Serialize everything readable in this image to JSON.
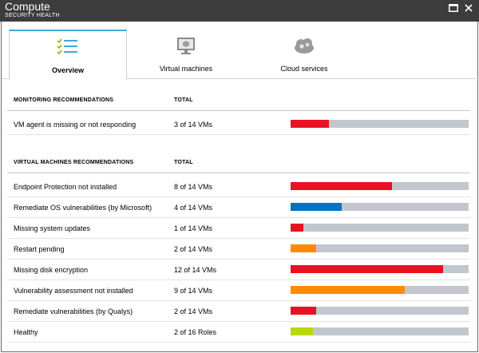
{
  "window": {
    "title": "Compute",
    "subtitle": "SECURITY HEALTH",
    "maximize_icon": "maximize-icon",
    "close_icon": "close-icon"
  },
  "tabs": [
    {
      "label": "Overview",
      "icon": "checklist-icon",
      "active": true
    },
    {
      "label": "Virtual machines",
      "icon": "monitor-icon",
      "active": false
    },
    {
      "label": "Cloud services",
      "icon": "cloud-gear-icon",
      "active": false
    }
  ],
  "monitoring": {
    "header_name": "MONITORING RECOMMENDATIONS",
    "header_total": "TOTAL",
    "rows": [
      {
        "name": "VM agent is missing or not responding",
        "total": "3 of 14 VMs",
        "fraction": 0.214,
        "color": "#e81123"
      }
    ]
  },
  "vm": {
    "header_name": "VIRTUAL MACHINES RECOMMENDATIONS",
    "header_total": "TOTAL",
    "rows": [
      {
        "name": "Endpoint Protection not installed",
        "total": "8 of 14 VMs",
        "fraction": 0.571,
        "color": "#e81123"
      },
      {
        "name": "Remediate OS vulnerabilities (by Microsoft)",
        "total": "4 of 14 VMs",
        "fraction": 0.286,
        "color": "#0072c6"
      },
      {
        "name": "Missing system updates",
        "total": "1 of 14 VMs",
        "fraction": 0.071,
        "color": "#e81123"
      },
      {
        "name": "Restart pending",
        "total": "2 of 14 VMs",
        "fraction": 0.143,
        "color": "#ff8c00"
      },
      {
        "name": "Missing disk encryption",
        "total": "12 of 14 VMs",
        "fraction": 0.857,
        "color": "#e81123"
      },
      {
        "name": "Vulnerability assessment not installed",
        "total": "9 of 14 VMs",
        "fraction": 0.643,
        "color": "#ff8c00"
      },
      {
        "name": "Remediate vulnerabilities (by Qualys)",
        "total": "2 of 14 VMs",
        "fraction": 0.143,
        "color": "#e81123"
      },
      {
        "name": "Healthy",
        "total": "2 of 16 Roles",
        "fraction": 0.125,
        "color": "#bad80a"
      }
    ]
  }
}
